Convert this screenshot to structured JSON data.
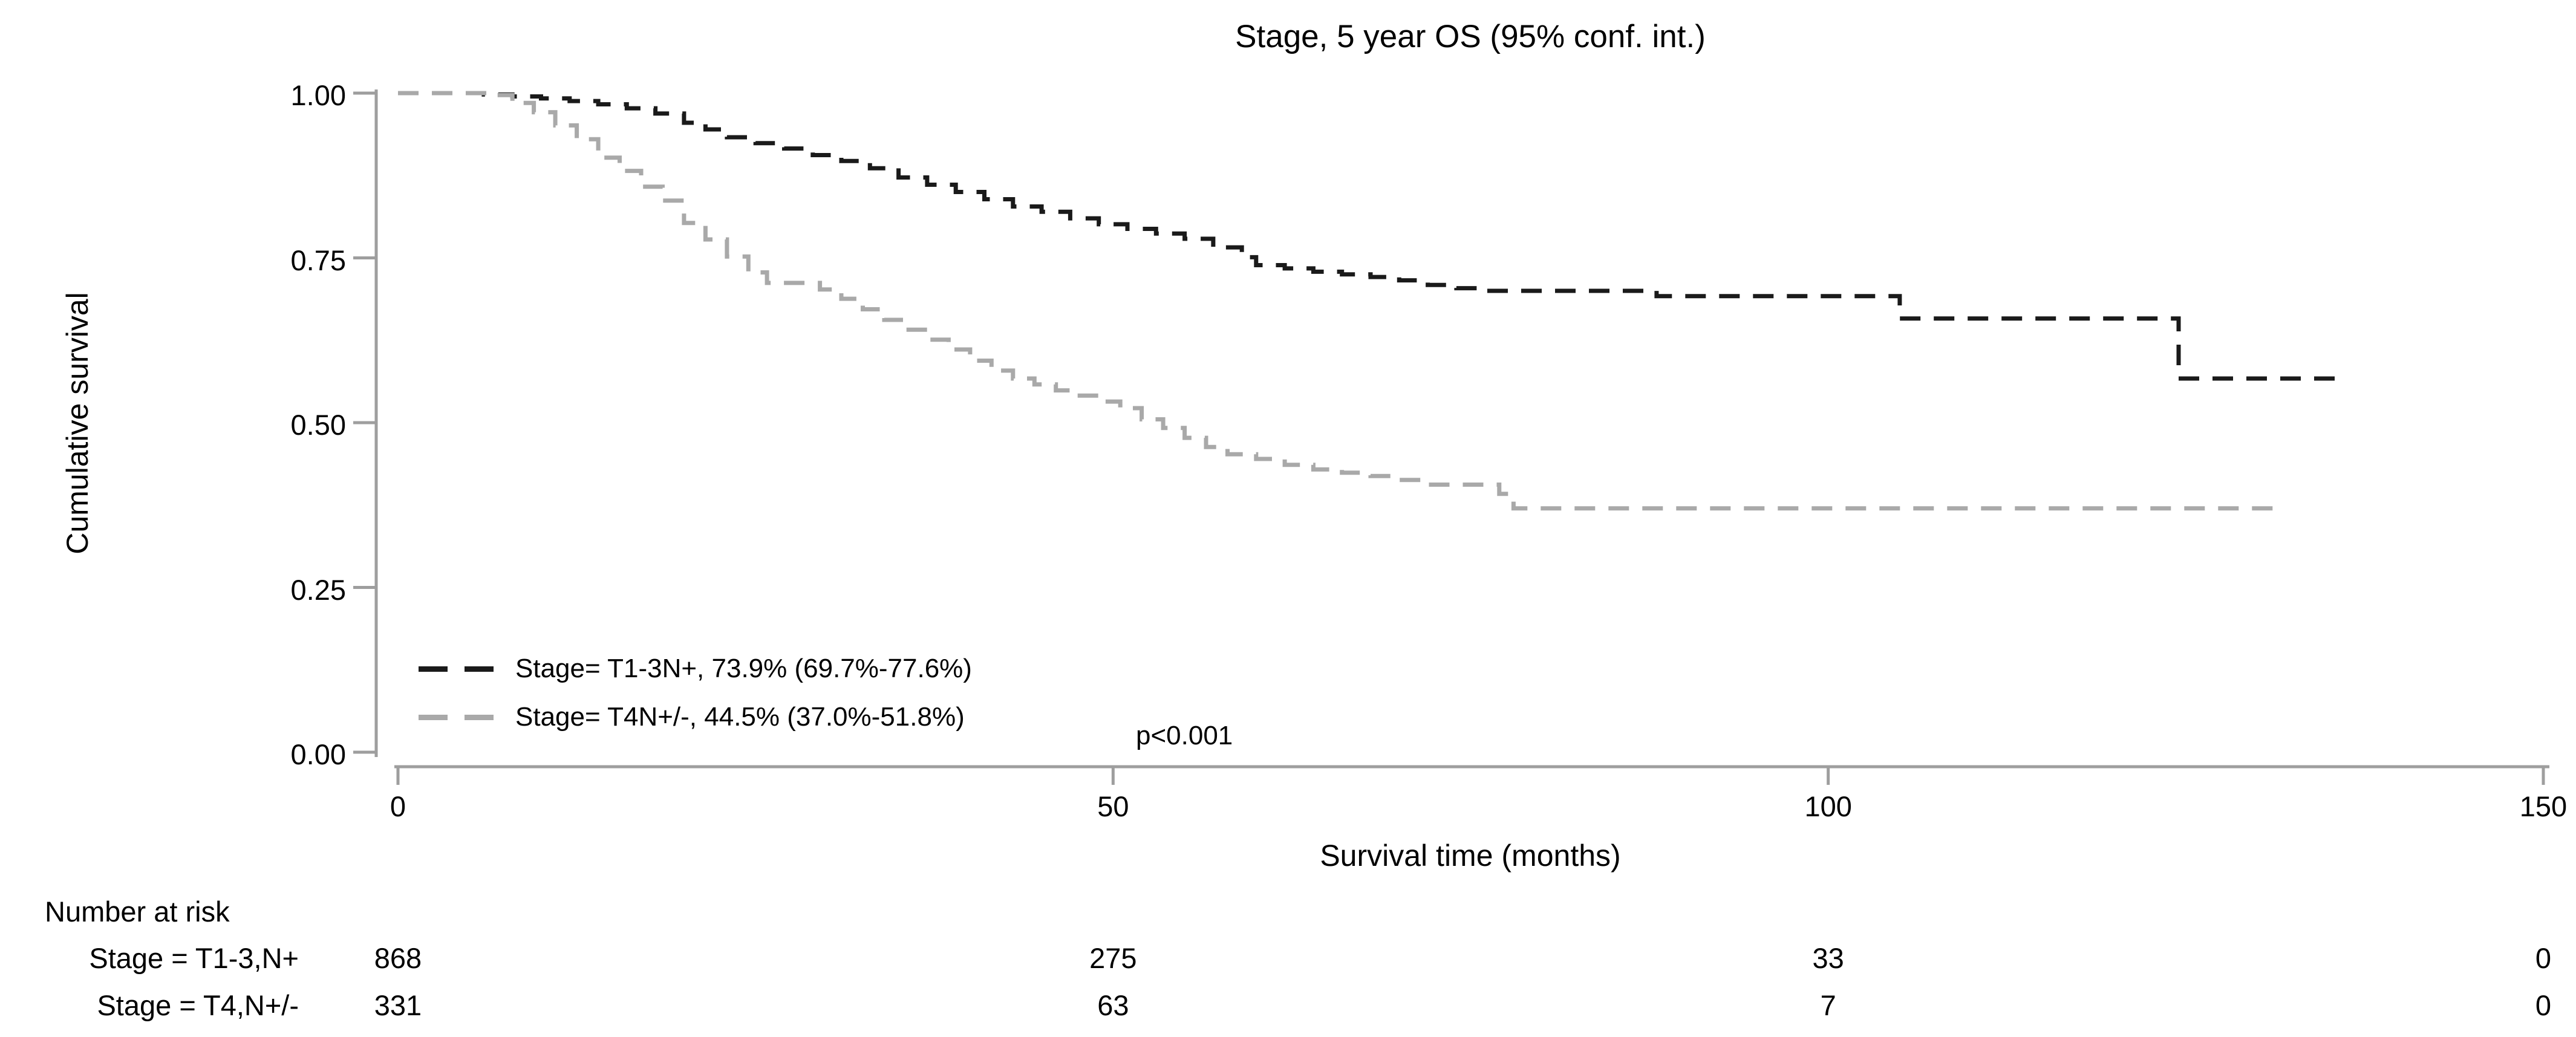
{
  "title": "Stage, 5 year OS (95% conf. int.)",
  "axes": {
    "y_title": "Cumulative survival",
    "x_title": "Survival time (months)",
    "y_ticks": [
      {
        "value": 1.0,
        "label": "1.00"
      },
      {
        "value": 0.75,
        "label": "0.75"
      },
      {
        "value": 0.5,
        "label": "0.50"
      },
      {
        "value": 0.25,
        "label": "0.25"
      },
      {
        "value": 0.0,
        "label": "0.00"
      }
    ],
    "x_ticks": [
      {
        "value": 0,
        "label": "0"
      },
      {
        "value": 50,
        "label": "50"
      },
      {
        "value": 100,
        "label": "100"
      },
      {
        "value": 150,
        "label": "150"
      }
    ],
    "axis_color": "#9e9e9e",
    "tick_label_color": "#000000"
  },
  "legend": {
    "entries": [
      {
        "label": "Stage= T1-3N+, 73.9% (69.7%-77.6%)",
        "color": "#1a1a1a"
      },
      {
        "label": "Stage= T4N+/-, 44.5% (37.0%-51.8%)",
        "color": "#a9a9a9"
      }
    ]
  },
  "p_value": "p<0.001",
  "risk_table": {
    "header": "Number at risk",
    "times": [
      0,
      50,
      100,
      150
    ],
    "rows": [
      {
        "label": "Stage = T1-3,N+",
        "counts": [
          "868",
          "275",
          "33",
          "0"
        ]
      },
      {
        "label": "Stage = T4,N+/-",
        "counts": [
          "331",
          "63",
          "7",
          "0"
        ]
      }
    ]
  },
  "chart_data": {
    "type": "line",
    "subtype": "kaplan-meier-step",
    "title": "Stage, 5 year OS (95% conf. int.)",
    "xlabel": "Survival time (months)",
    "ylabel": "Cumulative survival",
    "xlim": [
      0,
      150
    ],
    "ylim": [
      0,
      1
    ],
    "grid": false,
    "legend_position": "lower-left-inside",
    "line_style": "dashed",
    "series": [
      {
        "name": "Stage= T1-3N+",
        "five_year_os": "73.9% (69.7%-77.6%)",
        "n_at_risk_start": 868,
        "color": "#1a1a1a",
        "end_time": 135.5,
        "steps": [
          [
            6,
            0.998
          ],
          [
            8,
            0.995
          ],
          [
            10,
            0.992
          ],
          [
            12,
            0.988
          ],
          [
            14,
            0.983
          ],
          [
            16,
            0.977
          ],
          [
            18,
            0.969
          ],
          [
            20,
            0.955
          ],
          [
            21.5,
            0.945
          ],
          [
            23,
            0.933
          ],
          [
            25,
            0.924
          ],
          [
            27,
            0.916
          ],
          [
            29,
            0.906
          ],
          [
            31,
            0.897
          ],
          [
            33,
            0.886
          ],
          [
            35,
            0.872
          ],
          [
            37,
            0.861
          ],
          [
            39,
            0.85
          ],
          [
            41,
            0.839
          ],
          [
            43,
            0.828
          ],
          [
            45,
            0.82
          ],
          [
            47,
            0.81
          ],
          [
            49,
            0.801
          ],
          [
            51,
            0.794
          ],
          [
            53,
            0.787
          ],
          [
            55,
            0.779
          ],
          [
            57,
            0.766
          ],
          [
            59,
            0.751
          ],
          [
            60,
            0.739
          ],
          [
            62,
            0.734
          ],
          [
            64,
            0.729
          ],
          [
            66,
            0.725
          ],
          [
            68,
            0.721
          ],
          [
            70,
            0.716
          ],
          [
            72,
            0.709
          ],
          [
            74,
            0.704
          ],
          [
            75.5,
            0.7
          ],
          [
            88,
            0.692
          ],
          [
            105,
            0.658
          ],
          [
            124.5,
            0.567
          ]
        ]
      },
      {
        "name": "Stage= T4N+/-",
        "five_year_os": "44.5% (37.0%-51.8%)",
        "n_at_risk_start": 331,
        "color": "#a9a9a9",
        "end_time": 131.5,
        "steps": [
          [
            6.5,
            0.997
          ],
          [
            8,
            0.985
          ],
          [
            9.5,
            0.971
          ],
          [
            11,
            0.951
          ],
          [
            12.5,
            0.93
          ],
          [
            14,
            0.902
          ],
          [
            15.5,
            0.882
          ],
          [
            17,
            0.858
          ],
          [
            18.5,
            0.837
          ],
          [
            20,
            0.803
          ],
          [
            21.5,
            0.778
          ],
          [
            23,
            0.752
          ],
          [
            24.5,
            0.728
          ],
          [
            25.8,
            0.712
          ],
          [
            29.5,
            0.702
          ],
          [
            31,
            0.688
          ],
          [
            32.5,
            0.672
          ],
          [
            34,
            0.656
          ],
          [
            35.5,
            0.641
          ],
          [
            37,
            0.626
          ],
          [
            38.5,
            0.611
          ],
          [
            40,
            0.594
          ],
          [
            41.5,
            0.579
          ],
          [
            43,
            0.567
          ],
          [
            44.5,
            0.558
          ],
          [
            46,
            0.549
          ],
          [
            47.5,
            0.541
          ],
          [
            49,
            0.532
          ],
          [
            50.5,
            0.522
          ],
          [
            52,
            0.505
          ],
          [
            53.5,
            0.492
          ],
          [
            55,
            0.477
          ],
          [
            56.5,
            0.463
          ],
          [
            58,
            0.452
          ],
          [
            60,
            0.445
          ],
          [
            62,
            0.436
          ],
          [
            64,
            0.429
          ],
          [
            66,
            0.424
          ],
          [
            68,
            0.419
          ],
          [
            70,
            0.413
          ],
          [
            71.8,
            0.406
          ],
          [
            77,
            0.392
          ],
          [
            78,
            0.37
          ]
        ]
      }
    ]
  }
}
